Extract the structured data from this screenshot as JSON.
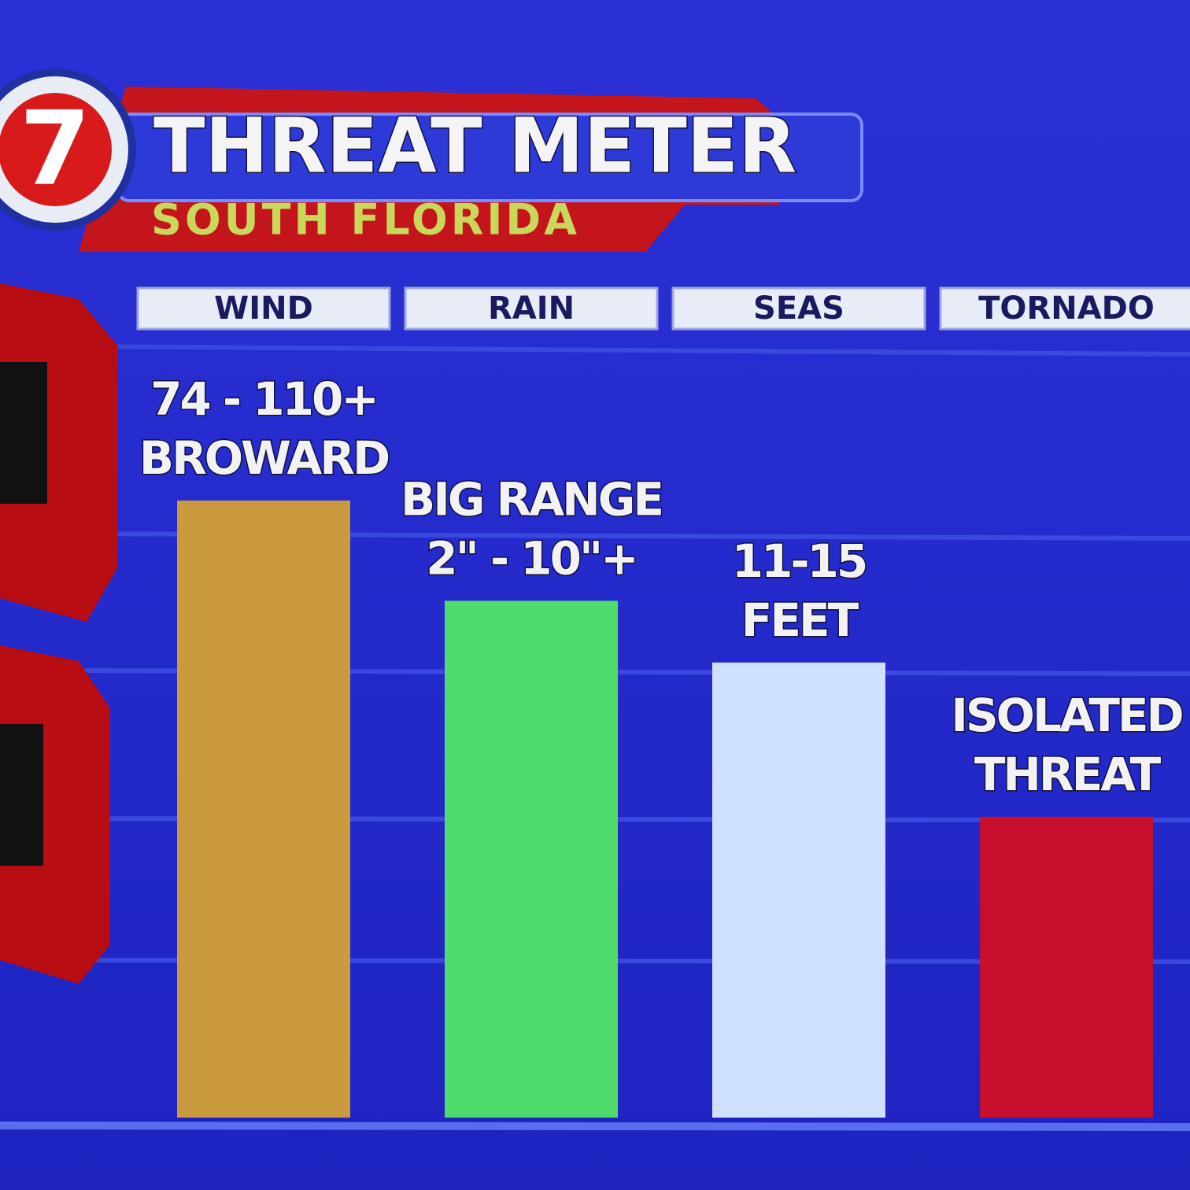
{
  "logo": "7",
  "chart_data": {
    "type": "bar",
    "title": "THREAT METER",
    "subtitle": "SOUTH FLORIDA",
    "categories": [
      "WIND",
      "RAIN",
      "SEAS",
      "TORNADO"
    ],
    "values": [
      80,
      67,
      59,
      39
    ],
    "colors": [
      "#c99a3e",
      "#4fdc6c",
      "#cfe0ff",
      "#c8102e"
    ],
    "annotations": [
      [
        "74 - 110+",
        "BROWARD"
      ],
      [
        "BIG RANGE",
        "2\" - 10\"+"
      ],
      [
        "11-15",
        "FEET"
      ],
      [
        "ISOLATED",
        "THREAT"
      ]
    ],
    "ylim": [
      0,
      100
    ]
  }
}
